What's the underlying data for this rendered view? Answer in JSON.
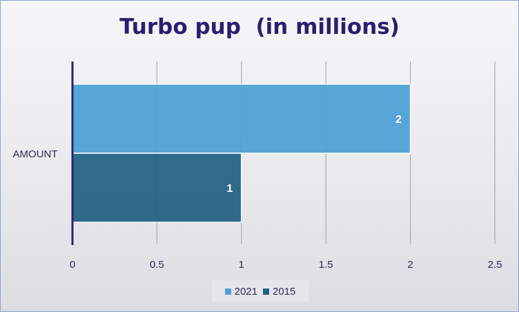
{
  "chart_data": {
    "type": "bar",
    "orientation": "horizontal",
    "title": "Turbo pup  (in millions)",
    "categories": [
      "AMOUNT"
    ],
    "series": [
      {
        "name": "2021",
        "values": [
          2
        ],
        "color": "#4a9fd6"
      },
      {
        "name": "2015",
        "values": [
          1
        ],
        "color": "#215f82"
      }
    ],
    "xlim": [
      0,
      2.5
    ],
    "xticks": [
      "0",
      "0.5",
      "1",
      "1.5",
      "2",
      "2.5"
    ],
    "xticks_values": [
      0,
      0.5,
      1,
      1.5,
      2,
      2.5
    ],
    "data_labels": [
      "2",
      "1"
    ],
    "grid": true,
    "legend_position": "bottom",
    "colors": {
      "title": "#2a1f6e",
      "axis": "#2d2075",
      "gridline": "#a9a9b6",
      "data_label": "#ffffff"
    }
  }
}
